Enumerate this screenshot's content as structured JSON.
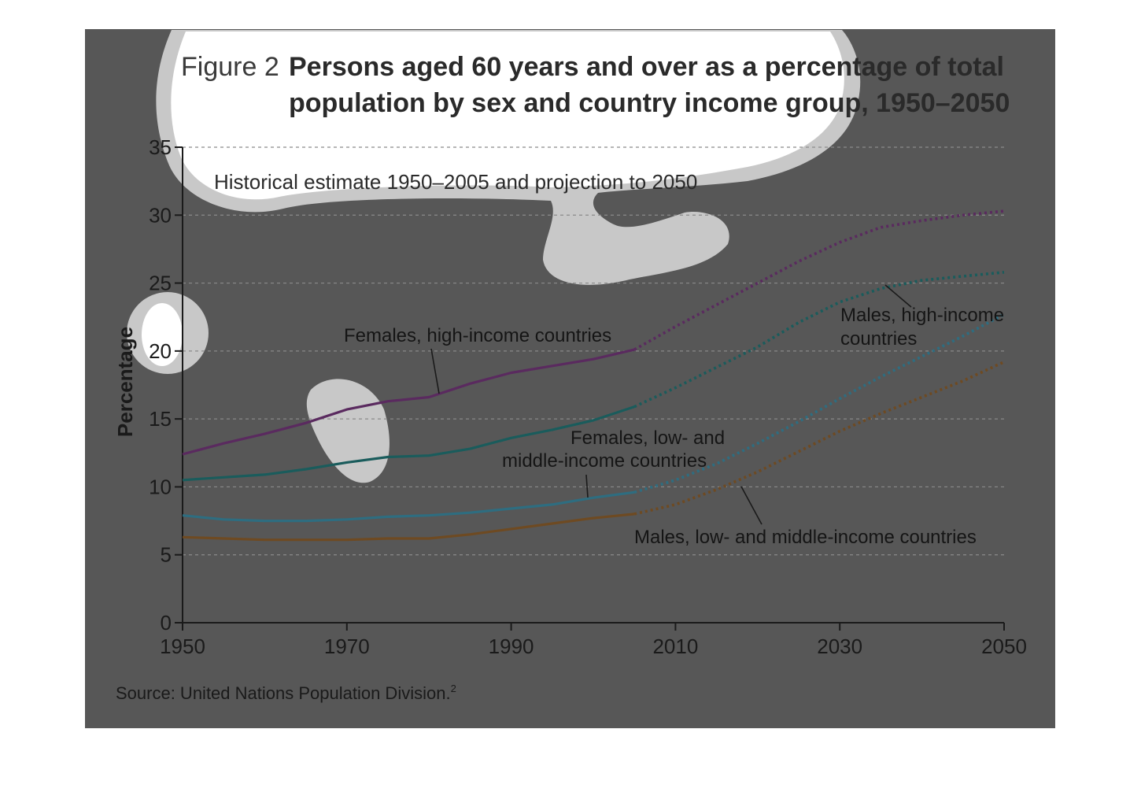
{
  "figure": {
    "number": "Figure 2",
    "title_line1": "Persons aged 60 years and over as a percentage of total",
    "title_line2": "population by sex and country income group, 1950–2050",
    "subtitle": "Historical estimate 1950–2005 and projection to 2050",
    "source": "Source: United Nations Population Division.",
    "source_note": "2",
    "background_color": "#575757"
  },
  "chart_data": {
    "type": "line",
    "ylabel": "Percentage",
    "xlim": [
      1950,
      2050
    ],
    "ylim": [
      0,
      35
    ],
    "x_ticks": [
      "1950",
      "1970",
      "1990",
      "2010",
      "2030",
      "2050"
    ],
    "y_ticks": [
      "0",
      "5",
      "10",
      "15",
      "20",
      "25",
      "30",
      "35"
    ],
    "grid": "horizontal dashed",
    "historical_until": 2005,
    "projection_style": "dotted",
    "series": [
      {
        "name": "Females, high-income countries",
        "color": "#5a2a5f",
        "x": [
          1950,
          1955,
          1960,
          1965,
          1970,
          1975,
          1980,
          1985,
          1990,
          1995,
          2000,
          2005,
          2010,
          2015,
          2020,
          2025,
          2030,
          2035,
          2040,
          2045,
          2050
        ],
        "y": [
          12.4,
          13.2,
          13.9,
          14.7,
          15.7,
          16.3,
          16.6,
          17.6,
          18.4,
          18.9,
          19.4,
          20.1,
          21.8,
          23.4,
          25.0,
          26.6,
          28.0,
          29.1,
          29.6,
          30.0,
          30.3
        ]
      },
      {
        "name": "Males, high-income countries",
        "color": "#1a5c5c",
        "x": [
          1950,
          1955,
          1960,
          1965,
          1970,
          1975,
          1980,
          1985,
          1990,
          1995,
          2000,
          2005,
          2010,
          2015,
          2020,
          2025,
          2030,
          2035,
          2040,
          2045,
          2050
        ],
        "y": [
          10.5,
          10.7,
          10.9,
          11.3,
          11.8,
          12.2,
          12.3,
          12.8,
          13.6,
          14.2,
          14.9,
          15.9,
          17.3,
          18.8,
          20.3,
          22.1,
          23.6,
          24.6,
          25.2,
          25.5,
          25.8
        ]
      },
      {
        "name": "Females, low- and middle-income countries",
        "color": "#2e6d80",
        "x": [
          1950,
          1955,
          1960,
          1965,
          1970,
          1975,
          1980,
          1985,
          1990,
          1995,
          2000,
          2005,
          2010,
          2015,
          2020,
          2025,
          2030,
          2035,
          2040,
          2045,
          2050
        ],
        "y": [
          7.9,
          7.6,
          7.5,
          7.5,
          7.6,
          7.8,
          7.9,
          8.1,
          8.4,
          8.7,
          9.2,
          9.6,
          10.5,
          11.7,
          13.2,
          14.8,
          16.5,
          18.1,
          19.6,
          21.1,
          22.7
        ]
      },
      {
        "name": "Males, low- and middle-income countries",
        "color": "#6e4a22",
        "x": [
          1950,
          1955,
          1960,
          1965,
          1970,
          1975,
          1980,
          1985,
          1990,
          1995,
          2000,
          2005,
          2010,
          2015,
          2020,
          2025,
          2030,
          2035,
          2040,
          2045,
          2050
        ],
        "y": [
          6.3,
          6.2,
          6.1,
          6.1,
          6.1,
          6.2,
          6.2,
          6.5,
          6.9,
          7.3,
          7.7,
          8.0,
          8.7,
          9.8,
          11.1,
          12.6,
          14.1,
          15.4,
          16.6,
          17.8,
          19.2
        ]
      }
    ]
  },
  "labels": {
    "females_high_line1": "Females, high-income countries",
    "males_high_line1": "Males, high-income",
    "males_high_line2": "countries",
    "females_low_line1": "Females, low- and",
    "females_low_line2": "middle-income countries",
    "males_low_line1": "Males, low- and middle-income countries"
  }
}
